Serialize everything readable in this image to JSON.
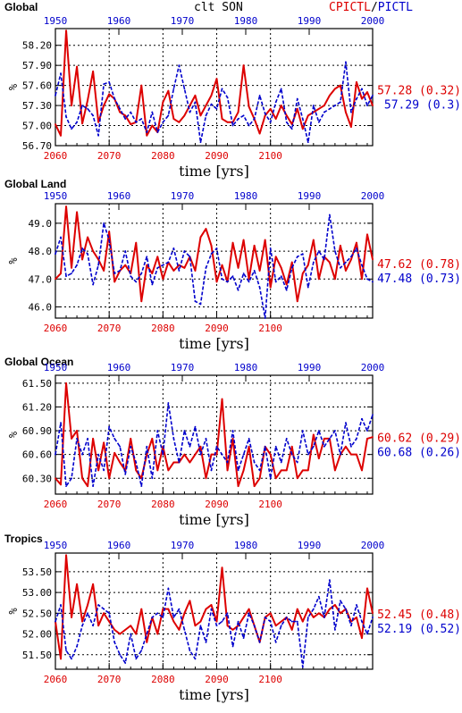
{
  "figure": {
    "header_title": "clt SON",
    "legend": {
      "label_1": "CPICTL",
      "sep": "/",
      "label_2": "PICTL"
    },
    "colors": {
      "series_1": "#dd0000",
      "series_2": "#0000cc",
      "grid": "#000000"
    }
  },
  "chart_data": [
    {
      "type": "line",
      "title": "Global",
      "xlabel": "time [yrs]",
      "ylabel": "%",
      "bottom_axis_ticks": [
        "2060",
        "2070",
        "2080",
        "2090",
        "2100"
      ],
      "top_axis_ticks": [
        "1950",
        "1960",
        "1970",
        "1980",
        "1990",
        "2000"
      ],
      "xlim": [
        2060,
        2119
      ],
      "ylim": [
        56.7,
        58.45
      ],
      "yticks": [
        56.7,
        57.0,
        57.3,
        57.6,
        57.9,
        58.2
      ],
      "ytick_labels": [
        "56.70",
        "57.00",
        "57.30",
        "57.60",
        "57.90",
        "58.20"
      ],
      "x": [
        2060,
        2061,
        2062,
        2063,
        2064,
        2065,
        2066,
        2067,
        2068,
        2069,
        2070,
        2071,
        2072,
        2073,
        2074,
        2075,
        2076,
        2077,
        2078,
        2079,
        2080,
        2081,
        2082,
        2083,
        2084,
        2085,
        2086,
        2087,
        2088,
        2089,
        2090,
        2091,
        2092,
        2093,
        2094,
        2095,
        2096,
        2097,
        2098,
        2099,
        2100,
        2101,
        2102,
        2103,
        2104,
        2105,
        2106,
        2107,
        2108,
        2109,
        2110,
        2111,
        2112,
        2113,
        2114,
        2115,
        2116,
        2117,
        2118,
        2119
      ],
      "series": [
        {
          "name": "CPICTL",
          "mean_label": "57.28 (0.32)",
          "values": [
            57.02,
            56.85,
            58.42,
            57.3,
            57.88,
            57.03,
            57.38,
            57.81,
            57.05,
            57.3,
            57.47,
            57.4,
            57.2,
            57.15,
            57.02,
            57.05,
            57.6,
            56.85,
            57.0,
            56.9,
            57.35,
            57.52,
            57.1,
            57.05,
            57.15,
            57.3,
            57.45,
            57.15,
            57.3,
            57.45,
            57.7,
            57.1,
            57.05,
            57.05,
            57.2,
            57.9,
            57.28,
            57.1,
            56.88,
            57.15,
            57.25,
            57.1,
            57.3,
            57.15,
            57.02,
            57.25,
            56.95,
            57.15,
            57.2,
            57.25,
            57.3,
            57.45,
            57.55,
            57.6,
            57.2,
            56.98,
            57.65,
            57.4,
            57.5,
            57.3
          ]
        },
        {
          "name": "PICTL",
          "mean_label": "57.29 (0.3)",
          "values": [
            57.45,
            57.78,
            57.13,
            56.95,
            57.05,
            57.3,
            57.25,
            57.15,
            56.85,
            57.62,
            57.65,
            57.4,
            57.25,
            57.1,
            57.2,
            57.05,
            57.1,
            56.9,
            57.2,
            56.9,
            57.05,
            57.15,
            57.55,
            57.9,
            57.55,
            57.2,
            57.35,
            56.75,
            57.15,
            57.32,
            57.25,
            57.55,
            57.42,
            57.0,
            57.1,
            57.15,
            57.0,
            57.1,
            57.45,
            57.18,
            57.05,
            57.35,
            57.55,
            57.05,
            56.95,
            57.4,
            57.1,
            56.75,
            57.3,
            57.05,
            57.2,
            57.25,
            57.3,
            57.35,
            57.95,
            57.2,
            57.4,
            57.55,
            57.3,
            57.45
          ]
        }
      ]
    },
    {
      "type": "line",
      "title": "Global Land",
      "xlabel": "time [yrs]",
      "ylabel": "%",
      "bottom_axis_ticks": [
        "2060",
        "2070",
        "2080",
        "2090",
        "2100"
      ],
      "top_axis_ticks": [
        "1950",
        "1960",
        "1970",
        "1980",
        "1990",
        "2000"
      ],
      "xlim": [
        2060,
        2119
      ],
      "ylim": [
        45.6,
        49.7
      ],
      "yticks": [
        46.0,
        47.0,
        48.0,
        49.0
      ],
      "ytick_labels": [
        "46.0",
        "47.0",
        "48.0",
        "49.0"
      ],
      "x": [
        2060,
        2061,
        2062,
        2063,
        2064,
        2065,
        2066,
        2067,
        2068,
        2069,
        2070,
        2071,
        2072,
        2073,
        2074,
        2075,
        2076,
        2077,
        2078,
        2079,
        2080,
        2081,
        2082,
        2083,
        2084,
        2085,
        2086,
        2087,
        2088,
        2089,
        2090,
        2091,
        2092,
        2093,
        2094,
        2095,
        2096,
        2097,
        2098,
        2099,
        2100,
        2101,
        2102,
        2103,
        2104,
        2105,
        2106,
        2107,
        2108,
        2109,
        2110,
        2111,
        2112,
        2113,
        2114,
        2115,
        2116,
        2117,
        2118,
        2119
      ],
      "series": [
        {
          "name": "CPICTL",
          "mean_label": "47.62 (0.78)",
          "values": [
            47.0,
            47.2,
            49.6,
            47.4,
            49.4,
            47.7,
            48.5,
            48.0,
            47.7,
            47.3,
            48.7,
            46.9,
            47.3,
            47.5,
            47.2,
            48.3,
            46.2,
            47.5,
            47.2,
            47.8,
            47.0,
            47.6,
            47.3,
            47.5,
            47.4,
            47.8,
            47.3,
            48.5,
            48.8,
            48.2,
            46.9,
            47.5,
            46.9,
            48.3,
            47.4,
            48.4,
            47.0,
            48.2,
            47.3,
            48.4,
            46.7,
            47.8,
            47.4,
            46.8,
            47.6,
            46.2,
            47.2,
            47.5,
            48.4,
            47.0,
            47.8,
            47.6,
            47.0,
            48.2,
            47.3,
            47.7,
            48.3,
            47.0,
            48.6,
            47.7
          ]
        },
        {
          "name": "PICTL",
          "mean_label": "47.48 (0.73)",
          "values": [
            47.9,
            48.5,
            47.1,
            47.2,
            47.5,
            48.1,
            47.9,
            46.8,
            47.5,
            49.0,
            48.4,
            47.2,
            47.3,
            48.0,
            47.1,
            46.9,
            47.2,
            47.8,
            46.8,
            47.4,
            47.5,
            47.6,
            48.1,
            47.3,
            48.0,
            47.8,
            46.2,
            46.1,
            47.4,
            47.9,
            48.1,
            47.0,
            46.9,
            47.1,
            46.6,
            47.2,
            46.9,
            47.3,
            46.7,
            45.6,
            48.1,
            46.9,
            47.1,
            46.6,
            47.4,
            47.8,
            47.9,
            46.7,
            47.6,
            48.0,
            47.7,
            49.3,
            48.0,
            47.4,
            47.6,
            47.8,
            48.1,
            47.5,
            47.0,
            46.9
          ]
        }
      ]
    },
    {
      "type": "line",
      "title": "Global Ocean",
      "xlabel": "time [yrs]",
      "ylabel": "%",
      "bottom_axis_ticks": [
        "2060",
        "2070",
        "2080",
        "2090",
        "2100"
      ],
      "top_axis_ticks": [
        "1950",
        "1960",
        "1970",
        "1980",
        "1990",
        "2000"
      ],
      "xlim": [
        2060,
        2119
      ],
      "ylim": [
        60.1,
        61.6
      ],
      "yticks": [
        60.3,
        60.6,
        60.9,
        61.2,
        61.5
      ],
      "ytick_labels": [
        "60.30",
        "60.60",
        "60.90",
        "61.20",
        "61.50"
      ],
      "x": [
        2060,
        2061,
        2062,
        2063,
        2064,
        2065,
        2066,
        2067,
        2068,
        2069,
        2070,
        2071,
        2072,
        2073,
        2074,
        2075,
        2076,
        2077,
        2078,
        2079,
        2080,
        2081,
        2082,
        2083,
        2084,
        2085,
        2086,
        2087,
        2088,
        2089,
        2090,
        2091,
        2092,
        2093,
        2094,
        2095,
        2096,
        2097,
        2098,
        2099,
        2100,
        2101,
        2102,
        2103,
        2104,
        2105,
        2106,
        2107,
        2108,
        2109,
        2110,
        2111,
        2112,
        2113,
        2114,
        2115,
        2116,
        2117,
        2118,
        2119
      ],
      "series": [
        {
          "name": "CPICTL",
          "mean_label": "60.62 (0.29)",
          "values": [
            60.3,
            60.22,
            61.5,
            60.8,
            60.9,
            60.3,
            60.2,
            60.8,
            60.4,
            60.75,
            60.3,
            60.62,
            60.5,
            60.4,
            60.8,
            60.4,
            60.3,
            60.6,
            60.8,
            60.4,
            60.7,
            60.4,
            60.5,
            60.5,
            60.6,
            60.5,
            60.6,
            60.7,
            60.3,
            60.6,
            60.6,
            61.3,
            60.4,
            60.8,
            60.2,
            60.4,
            60.7,
            60.2,
            60.3,
            60.7,
            60.6,
            60.3,
            60.4,
            60.4,
            60.7,
            60.3,
            60.4,
            60.4,
            60.85,
            60.55,
            60.8,
            60.8,
            60.4,
            60.6,
            60.7,
            60.6,
            60.6,
            60.4,
            60.8,
            60.82
          ]
        },
        {
          "name": "PICTL",
          "mean_label": "60.68 (0.26)",
          "values": [
            60.6,
            61.0,
            60.2,
            60.3,
            60.8,
            60.6,
            60.8,
            60.2,
            60.6,
            60.4,
            60.95,
            60.8,
            60.7,
            60.35,
            60.7,
            60.5,
            60.2,
            60.7,
            60.3,
            60.9,
            60.6,
            61.25,
            60.8,
            60.5,
            60.9,
            60.7,
            60.95,
            60.6,
            60.8,
            60.4,
            60.7,
            60.6,
            60.5,
            60.9,
            60.4,
            60.6,
            60.8,
            60.5,
            60.4,
            60.7,
            60.3,
            60.7,
            60.5,
            60.8,
            60.6,
            60.5,
            60.9,
            60.6,
            60.7,
            60.9,
            60.7,
            60.8,
            60.9,
            60.6,
            61.0,
            60.7,
            60.8,
            61.05,
            60.9,
            61.1
          ]
        }
      ]
    },
    {
      "type": "line",
      "title": "Tropics",
      "xlabel": "time [yrs]",
      "ylabel": "%",
      "bottom_axis_ticks": [
        "2060",
        "2070",
        "2080",
        "2090",
        "2100"
      ],
      "top_axis_ticks": [
        "1950",
        "1960",
        "1970",
        "1980",
        "1990",
        "2000"
      ],
      "xlim": [
        2060,
        2119
      ],
      "ylim": [
        51.15,
        53.95
      ],
      "yticks": [
        51.5,
        52.0,
        52.5,
        53.0,
        53.5
      ],
      "ytick_labels": [
        "51.50",
        "52.00",
        "52.50",
        "53.00",
        "53.50"
      ],
      "x": [
        2060,
        2061,
        2062,
        2063,
        2064,
        2065,
        2066,
        2067,
        2068,
        2069,
        2070,
        2071,
        2072,
        2073,
        2074,
        2075,
        2076,
        2077,
        2078,
        2079,
        2080,
        2081,
        2082,
        2083,
        2084,
        2085,
        2086,
        2087,
        2088,
        2089,
        2090,
        2091,
        2092,
        2093,
        2094,
        2095,
        2096,
        2097,
        2098,
        2099,
        2100,
        2101,
        2102,
        2103,
        2104,
        2105,
        2106,
        2107,
        2108,
        2109,
        2110,
        2111,
        2112,
        2113,
        2114,
        2115,
        2116,
        2117,
        2118,
        2119
      ],
      "series": [
        {
          "name": "CPICTL",
          "mean_label": "52.45 (0.48)",
          "values": [
            52.3,
            51.4,
            53.9,
            52.4,
            53.2,
            52.3,
            52.7,
            53.2,
            52.2,
            52.5,
            52.3,
            52.1,
            52.0,
            52.1,
            52.2,
            52.0,
            52.6,
            51.8,
            52.4,
            52.0,
            52.6,
            52.6,
            52.3,
            52.1,
            52.5,
            52.8,
            52.2,
            52.3,
            52.6,
            52.7,
            52.3,
            53.6,
            52.2,
            52.1,
            52.2,
            52.4,
            52.6,
            52.2,
            51.8,
            52.4,
            52.5,
            52.2,
            52.3,
            52.4,
            52.1,
            52.6,
            52.3,
            52.6,
            52.4,
            52.5,
            52.4,
            52.6,
            52.7,
            52.5,
            52.6,
            52.3,
            52.4,
            51.9,
            53.1,
            52.5
          ]
        },
        {
          "name": "PICTL",
          "mean_label": "52.19 (0.52)",
          "values": [
            52.3,
            52.7,
            51.6,
            51.4,
            51.7,
            52.2,
            52.5,
            52.2,
            52.7,
            52.6,
            52.5,
            51.8,
            51.5,
            51.3,
            52.0,
            51.4,
            51.6,
            52.0,
            52.4,
            52.5,
            52.4,
            53.1,
            52.4,
            52.6,
            52.1,
            51.6,
            51.4,
            52.2,
            51.8,
            52.6,
            52.2,
            52.3,
            52.5,
            51.7,
            52.3,
            51.9,
            52.5,
            52.2,
            51.8,
            52.4,
            52.3,
            51.8,
            52.2,
            52.4,
            52.3,
            52.3,
            51.2,
            52.4,
            52.6,
            52.9,
            52.4,
            53.3,
            52.1,
            52.8,
            52.6,
            52.2,
            52.7,
            52.3,
            52.0,
            52.4
          ]
        }
      ]
    }
  ]
}
